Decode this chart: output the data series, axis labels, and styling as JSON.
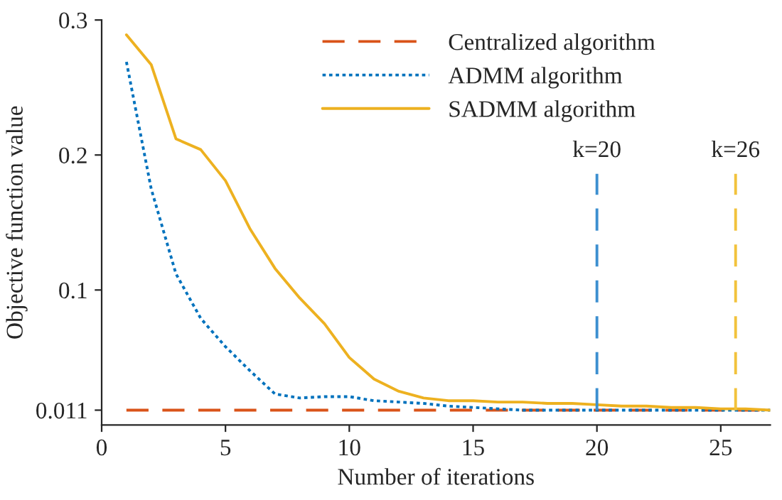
{
  "chart_data": {
    "type": "line",
    "xlabel": "Number of iterations",
    "ylabel": "Objective function value",
    "xlim": [
      0,
      27
    ],
    "ylim": [
      0,
      0.3
    ],
    "xticks": [
      0,
      5,
      10,
      15,
      20,
      25
    ],
    "yticks": [
      0.011,
      0.1,
      0.2,
      0.3
    ],
    "grid": false,
    "legend": "top right",
    "series": [
      {
        "name": "Centralized algorithm",
        "color": "#d95319",
        "line_style": "dashed",
        "x": [
          1,
          27
        ],
        "values": [
          0.011,
          0.011
        ]
      },
      {
        "name": "ADMM algorithm",
        "color": "#0072bd",
        "line_style": "dotted",
        "x": [
          1,
          2,
          3,
          4,
          5,
          6,
          7,
          8,
          9,
          10,
          11,
          12,
          13,
          14,
          15,
          16,
          17,
          18,
          19,
          20,
          21,
          22,
          23,
          24,
          25,
          26,
          27
        ],
        "values": [
          0.269,
          0.175,
          0.112,
          0.079,
          0.058,
          0.04,
          0.023,
          0.02,
          0.021,
          0.021,
          0.018,
          0.017,
          0.016,
          0.014,
          0.013,
          0.012,
          0.011,
          0.011,
          0.011,
          0.011,
          0.011,
          0.011,
          0.011,
          0.011,
          0.011,
          0.011,
          0.011
        ]
      },
      {
        "name": "SADMM algorithm",
        "color": "#edb120",
        "line_style": "solid",
        "x": [
          1,
          2,
          3,
          4,
          5,
          6,
          7,
          8,
          9,
          10,
          11,
          12,
          13,
          14,
          15,
          16,
          17,
          18,
          19,
          20,
          21,
          22,
          23,
          24,
          25,
          26,
          27
        ],
        "values": [
          0.289,
          0.267,
          0.212,
          0.204,
          0.181,
          0.145,
          0.116,
          0.094,
          0.075,
          0.05,
          0.034,
          0.025,
          0.02,
          0.018,
          0.018,
          0.017,
          0.017,
          0.016,
          0.016,
          0.015,
          0.014,
          0.014,
          0.013,
          0.013,
          0.012,
          0.012,
          0.011
        ]
      },
      {
        "color": "#3c8fd0",
        "line_style": "dashed",
        "x": [
          20,
          20
        ],
        "values": [
          0.011,
          0.186
        ]
      },
      {
        "color": "#f2c23c",
        "line_style": "dashed",
        "x": [
          25.6,
          25.6
        ],
        "values": [
          0.011,
          0.186
        ]
      }
    ],
    "annotations": [
      {
        "text": "k=20",
        "x": 20,
        "y": 0.186
      },
      {
        "text": "k=26",
        "x": 25.6,
        "y": 0.186
      }
    ]
  }
}
